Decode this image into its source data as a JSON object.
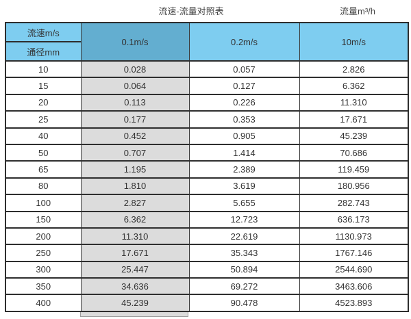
{
  "page": {
    "title": "流速-流量对照表",
    "unit_label": "流量m³/h"
  },
  "table": {
    "corner_top": "流速m/s",
    "corner_bottom": "通径mm",
    "velocity_columns": [
      "0.1m/s",
      "0.2m/s",
      "10m/s"
    ]
  },
  "colors": {
    "header_blue": "#7ecdf0",
    "highlight_column_blue": "#63aed0",
    "highlight_column_gray": "#dcdcdc",
    "border": "#2e2e2e"
  },
  "chart_data": {
    "type": "table",
    "title": "流速-流量对照表",
    "unit": "流量m³/h",
    "columns": [
      "通径mm",
      "0.1m/s",
      "0.2m/s",
      "10m/s"
    ],
    "highlighted_column": "0.1m/s",
    "rows": [
      [
        "10",
        "0.028",
        "0.057",
        "2.826"
      ],
      [
        "15",
        "0.064",
        "0.127",
        "6.362"
      ],
      [
        "20",
        "0.113",
        "0.226",
        "11.310"
      ],
      [
        "25",
        "0.177",
        "0.353",
        "17.671"
      ],
      [
        "40",
        "0.452",
        "0.905",
        "45.239"
      ],
      [
        "50",
        "0.707",
        "1.414",
        "70.686"
      ],
      [
        "65",
        "1.195",
        "2.389",
        "119.459"
      ],
      [
        "80",
        "1.810",
        "3.619",
        "180.956"
      ],
      [
        "100",
        "2.827",
        "5.655",
        "282.743"
      ],
      [
        "150",
        "6.362",
        "12.723",
        "636.173"
      ],
      [
        "200",
        "11.310",
        "22.619",
        "1130.973"
      ],
      [
        "250",
        "17.671",
        "35.343",
        "1767.146"
      ],
      [
        "300",
        "25.447",
        "50.894",
        "2544.690"
      ],
      [
        "350",
        "34.636",
        "69.272",
        "3463.606"
      ],
      [
        "400",
        "45.239",
        "90.478",
        "4523.893"
      ]
    ]
  }
}
